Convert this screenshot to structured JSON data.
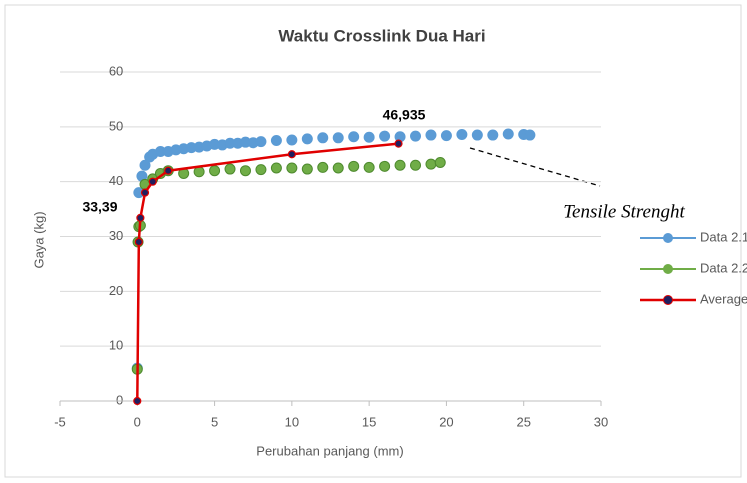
{
  "chart_data": {
    "type": "scatter",
    "title": "Waktu Crosslink Dua Hari",
    "x_label": "Perubahan panjang (mm)",
    "y_label": "Gaya (kg)",
    "xlim": [
      -5,
      30
    ],
    "xticks": [
      -5,
      0,
      5,
      10,
      15,
      20,
      25,
      30
    ],
    "ylim": [
      0,
      60
    ],
    "yticks": [
      0,
      10,
      20,
      30,
      40,
      50,
      60
    ],
    "grid": true,
    "legend": "right",
    "series": [
      {
        "name": "Data 2.1",
        "color": "#5b9bd5",
        "line": false,
        "x": [
          0,
          0.1,
          0.3,
          0.5,
          0.8,
          1,
          1.5,
          2,
          2.5,
          3,
          3.5,
          4,
          4.5,
          5,
          5.5,
          6,
          6.5,
          7,
          7.5,
          8,
          9,
          10,
          11,
          12,
          13,
          14,
          15,
          16,
          17,
          18,
          19,
          20,
          21,
          22,
          23,
          24,
          25,
          25.4
        ],
        "values": [
          6,
          38,
          41,
          43,
          44.5,
          45,
          45.5,
          45.5,
          45.8,
          46,
          46.2,
          46.3,
          46.5,
          46.8,
          46.7,
          47,
          47,
          47.2,
          47.1,
          47.3,
          47.5,
          47.6,
          47.8,
          48,
          48,
          48.2,
          48.1,
          48.3,
          48.2,
          48.3,
          48.5,
          48.4,
          48.6,
          48.5,
          48.5,
          48.7,
          48.6,
          48.5
        ]
      },
      {
        "name": "Data 2.2",
        "color": "#70ad47",
        "line": false,
        "x": [
          0,
          0.05,
          0.1,
          0.2,
          0.5,
          1,
          1.5,
          2,
          3,
          4,
          5,
          6,
          7,
          8,
          9,
          10,
          11,
          12,
          13,
          14,
          15,
          16,
          17,
          18,
          19,
          19.6
        ],
        "values": [
          5.8,
          29,
          31.8,
          32,
          39.5,
          40.5,
          41.5,
          42,
          41.5,
          41.8,
          42,
          42.3,
          42,
          42.2,
          42.5,
          42.5,
          42.3,
          42.6,
          42.5,
          42.8,
          42.6,
          42.8,
          43,
          43,
          43.2,
          43.5
        ]
      },
      {
        "name": "Average",
        "color": "#e00000",
        "line": true,
        "x": [
          0,
          0.1,
          0.2,
          0.5,
          1,
          2,
          10,
          16.9
        ],
        "values": [
          0,
          29,
          33.39,
          38,
          40,
          42,
          45,
          46.935
        ]
      }
    ],
    "annotations": [
      "46,935",
      "33,39",
      "Tensile Strenght"
    ]
  }
}
